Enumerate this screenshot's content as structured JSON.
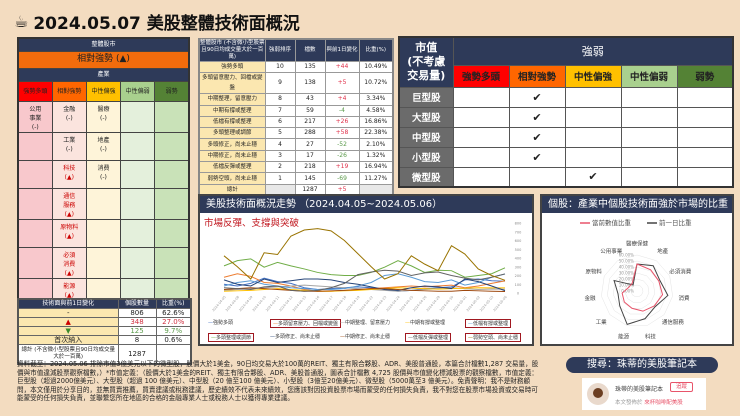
{
  "title": {
    "icon": "coffee-cup-icon",
    "text": "2024.05.07 美股整體技術面概況"
  },
  "sector_panel": {
    "header": "整體股市",
    "market_status": "相對強勢 (▲)",
    "industry_label": "產業",
    "columns": [
      "強勢多頭",
      "相對強勢",
      "中性偏強",
      "中性偏弱",
      "弱勢"
    ],
    "column_colors": [
      "#ff0000",
      "#ff6600",
      "#ffc000",
      "#a9d08e",
      "#548235"
    ],
    "cells": [
      [
        [
          "公用",
          "事業",
          "(-)"
        ],
        [
          "金融",
          "(-)"
        ],
        [
          "醫療",
          "(-)"
        ],
        [],
        []
      ],
      [
        [],
        [
          "工業",
          "(-)"
        ],
        [
          "地產",
          "(-)"
        ],
        [],
        []
      ],
      [
        [],
        [
          "科技",
          "(▲)"
        ],
        [
          "消費",
          "(-)"
        ],
        [],
        []
      ],
      [
        [],
        [
          "通信",
          "服務",
          "(▲)"
        ],
        [],
        [],
        []
      ],
      [
        [],
        [
          "原物料",
          "(▲)"
        ],
        [],
        [],
        []
      ],
      [
        [],
        [
          "必須",
          "消費",
          "(▲)"
        ],
        [],
        [],
        []
      ],
      [
        [],
        [
          "能源",
          "(▲)"
        ],
        [],
        [],
        []
      ]
    ]
  },
  "change_table": {
    "headers": [
      "技術面與前1日變化",
      "個股數量",
      "比重(%)"
    ],
    "rows": [
      [
        "-",
        "806",
        "62.6%"
      ],
      [
        "▲",
        "348",
        "27.0%"
      ],
      [
        "▼",
        "125",
        "9.7%"
      ],
      [
        "首次納入",
        "8",
        "0.6%"
      ]
    ],
    "total": {
      "label": "總計 (不含微小型股票且90日均成交量大於一百萬)",
      "count": "1287",
      "pct": ""
    }
  },
  "mid_table": {
    "headers": [
      "整體股市 (不含微小型股票且90日均成交量大於一百萬)",
      "強弱排序",
      "檔數",
      "與前1日變化",
      "比重(%)"
    ],
    "rows": [
      [
        "強勢多頭",
        "10",
        "135",
        "+44",
        "10.49%"
      ],
      [
        "多頭留意壓力、回檔或變盤",
        "9",
        "138",
        "+5",
        "10.72%"
      ],
      [
        "中期整理，留意壓力",
        "8",
        "43",
        "+4",
        "3.34%"
      ],
      [
        "中期有撐或整理",
        "7",
        "59",
        "-4",
        "4.58%"
      ],
      [
        "低檔有撐或整理",
        "6",
        "217",
        "+26",
        "16.86%"
      ],
      [
        "多頭整理或調節",
        "5",
        "288",
        "+58",
        "22.38%"
      ],
      [
        "多頭修正，尚未止穩",
        "4",
        "27",
        "-52",
        "2.10%"
      ],
      [
        "中期修正，尚未止穩",
        "3",
        "17",
        "-26",
        "1.32%"
      ],
      [
        "低檔反彈或整理",
        "2",
        "218",
        "+19",
        "16.94%"
      ],
      [
        "弱勢空頭，尚未止穩",
        "1",
        "145",
        "-69",
        "11.27%"
      ]
    ],
    "total": [
      "總計",
      "",
      "1287",
      "+5",
      ""
    ]
  },
  "cap_table": {
    "corner": [
      "市值",
      "(不考慮",
      "交易量)"
    ],
    "header": "強弱",
    "columns": [
      "強勢多頭",
      "相對強勢",
      "中性偏強",
      "中性偏弱",
      "弱勢"
    ],
    "rows": [
      {
        "label": "巨型股",
        "col": 1
      },
      {
        "label": "大型股",
        "col": 1
      },
      {
        "label": "中型股",
        "col": 1
      },
      {
        "label": "小型股",
        "col": 1
      },
      {
        "label": "微型股",
        "col": 2
      }
    ],
    "check": "✔"
  },
  "line_panel": {
    "title": "美股技術面概況走勢 （2024.04.05~2024.05.06）",
    "subtitle": "市場反彈、支撐與突破"
  },
  "radar_panel": {
    "title": "個股：產業中個股技術面強於市場的比重"
  },
  "chart_data": [
    {
      "type": "line",
      "ylim": [
        0,
        800
      ],
      "yticks": [
        0,
        100,
        200,
        300,
        400,
        500,
        600,
        700,
        800
      ],
      "x": [
        "2024-04-05",
        "2024-04-08",
        "2024-04-09",
        "2024-04-10",
        "2024-04-11",
        "2024-04-12",
        "2024-04-15",
        "2024-04-16",
        "2024-04-17",
        "2024-04-18",
        "2024-04-19",
        "2024-04-22",
        "2024-04-23",
        "2024-04-24",
        "2024-04-25",
        "2024-04-26",
        "2024-04-29",
        "2024-04-30",
        "2024-05-01",
        "2024-05-02",
        "2024-05-03",
        "2024-05-06"
      ],
      "series": [
        {
          "name": "強勢多頭",
          "color": "#4472c4",
          "highlight": false,
          "values": [
            100,
            80,
            110,
            170,
            130,
            110,
            60,
            40,
            50,
            60,
            70,
            60,
            40,
            20,
            30,
            50,
            60,
            70,
            150,
            160,
            140,
            135
          ]
        },
        {
          "name": "多頭留意壓力、回檔或變盤",
          "color": "#ed7d31",
          "highlight": true,
          "values": [
            180,
            220,
            190,
            120,
            110,
            80,
            40,
            20,
            20,
            30,
            40,
            50,
            60,
            70,
            80,
            70,
            80,
            90,
            60,
            80,
            110,
            138
          ]
        },
        {
          "name": "中期整理、留意壓力",
          "color": "#a5a5a5",
          "highlight": false,
          "values": [
            30,
            40,
            50,
            60,
            70,
            80,
            90,
            80,
            70,
            60,
            50,
            40,
            30,
            20,
            30,
            40,
            50,
            60,
            50,
            40,
            45,
            43
          ]
        },
        {
          "name": "中期有撐或整理",
          "color": "#ffc000",
          "highlight": false,
          "values": [
            20,
            25,
            30,
            40,
            50,
            40,
            30,
            20,
            20,
            25,
            30,
            40,
            50,
            60,
            55,
            50,
            45,
            50,
            55,
            60,
            58,
            59
          ]
        },
        {
          "name": "低檔有撐或整理",
          "color": "#5b9bd5",
          "highlight": true,
          "values": [
            80,
            120,
            140,
            100,
            80,
            60,
            50,
            40,
            40,
            50,
            80,
            120,
            200,
            220,
            180,
            130,
            120,
            150,
            90,
            120,
            180,
            217
          ]
        },
        {
          "name": "多頭整理或調節",
          "color": "#70ad47",
          "highlight": true,
          "values": [
            310,
            370,
            390,
            295,
            350,
            310,
            275,
            235,
            210,
            200,
            200,
            235,
            295,
            370,
            310,
            235,
            260,
            255,
            180,
            200,
            220,
            288
          ]
        },
        {
          "name": "多頭修正、尚未止穩",
          "color": "#264478",
          "highlight": false,
          "values": [
            150,
            100,
            80,
            160,
            120,
            140,
            160,
            160,
            150,
            120,
            100,
            70,
            40,
            30,
            60,
            80,
            70,
            50,
            160,
            130,
            80,
            27
          ]
        },
        {
          "name": "中期修正、尚未止穩",
          "color": "#9e480e",
          "highlight": false,
          "values": [
            40,
            50,
            60,
            50,
            40,
            30,
            20,
            20,
            25,
            30,
            40,
            50,
            50,
            40,
            30,
            25,
            20,
            20,
            30,
            25,
            20,
            17
          ]
        },
        {
          "name": "低檔反彈或整理",
          "color": "#636363",
          "highlight": true,
          "values": [
            60,
            50,
            40,
            70,
            80,
            30,
            20,
            30,
            60,
            110,
            210,
            240,
            260,
            250,
            200,
            230,
            240,
            200,
            170,
            150,
            180,
            218
          ]
        },
        {
          "name": "弱勢空頭、尚未止穩",
          "color": "#997300",
          "highlight": true,
          "values": [
            425,
            300,
            160,
            460,
            440,
            650,
            720,
            735,
            710,
            600,
            450,
            300,
            160,
            220,
            425,
            330,
            255,
            540,
            445,
            275,
            200,
            145
          ]
        }
      ]
    },
    {
      "type": "radar",
      "rlim": [
        0,
        0.6
      ],
      "rticks": [
        "0.00%",
        "10.00%",
        "20.00%",
        "30.00%",
        "40.00%",
        "50.00%",
        "60.00%"
      ],
      "categories": [
        "醫療保健",
        "地產",
        "必須消費",
        "消費",
        "通信服務",
        "科技",
        "能源",
        "工業",
        "金融",
        "原物料",
        "公用事業"
      ],
      "series": [
        {
          "name": "當前數值比重",
          "color": "#e8546a",
          "values": [
            0.45,
            0.42,
            0.4,
            0.43,
            0.38,
            0.35,
            0.3,
            0.28,
            0.25,
            0.15,
            0.15
          ]
        },
        {
          "name": "前一日比重",
          "color": "#444444",
          "values": [
            0.45,
            0.5,
            0.42,
            0.52,
            0.4,
            0.48,
            0.58,
            0.38,
            0.32,
            0.42,
            0.12
          ]
        }
      ]
    }
  ],
  "note": "資料截至：2024.05.06 排除市值3億美元以下的微型股，股價大於1美金，90日均交易大於100萬的REIT、獨主有限合夥股、ADR、美股普通股，本篇合計檔數1,287 交易量，股價與市值違減股票觀察檔數，）*市值定義：（股價大於1美金的REIT、獨主有限合夥股、ADR、美股普通股，圖表合計檔數 4,725 股價與市值變化標減股票的觀察檔數，市值定義：巨型股（超過2000億美元）、大型股（超過 100 億美元）、中型股（20 億至100 億美元）、小型股（3億至20億美元）、微型股（5000萬至3 億美元）。免責聲明：我不是財務顧問，本文僅用於分享目的，並無買賣推薦，買賣建議或稅務建議，歷史績效不代表未來績效，您應該對因投資股票市場而蒙受的任何損失負責，我不對您在股票市場投資或交易時可能蒙受的任何損失負責，並聯繫您所在地區的合格的金融專業人士或稅務人士以獲得專業建議。",
  "search": {
    "label": "搜尋：珠蒂的美股筆記本"
  },
  "card": {
    "name": "珠蒂的美股筆記本",
    "follow": "追蹤",
    "sub_prefix": "本文發佈於",
    "sub_link": "來杯咖啡配美股"
  }
}
